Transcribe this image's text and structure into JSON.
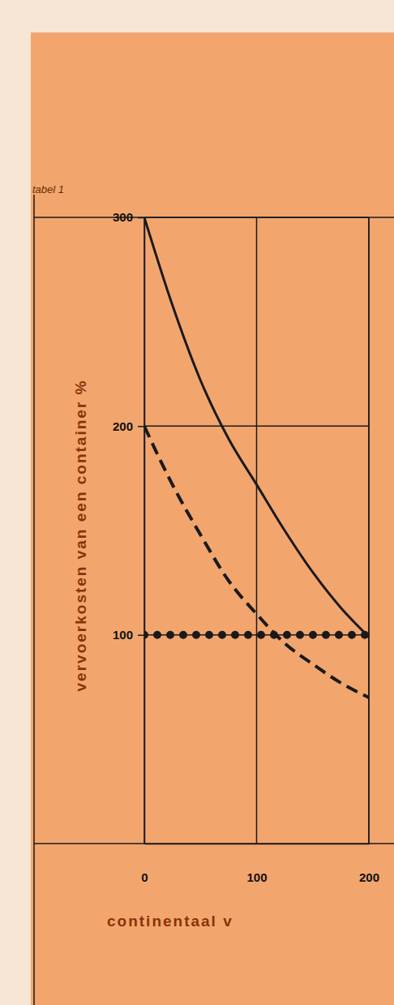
{
  "chart_data": {
    "type": "line",
    "title": "tabel 1",
    "y_label": "vervoerkosten van een container %",
    "x_label": "continentaal v",
    "x": [
      0,
      25,
      50,
      75,
      100,
      125,
      150,
      175,
      200
    ],
    "series": [
      {
        "color": "#1a1a1a",
        "line_style": "solid",
        "values": [
          300,
          258,
          222,
          194,
          172,
          150,
          130,
          113,
          99
        ]
      },
      {
        "color": "#1a1a1a",
        "line_style": "dashed",
        "values": [
          200,
          172,
          148,
          126,
          110,
          96,
          86,
          77,
          70
        ]
      },
      {
        "color": "#1a1a1a",
        "line_style": "dotted",
        "values": [
          100,
          100,
          100,
          100,
          100,
          100,
          100,
          100,
          100
        ]
      }
    ],
    "xlim": [
      0,
      200
    ],
    "xticks": [
      0,
      100,
      200
    ],
    "ylim": [
      0,
      300
    ],
    "yticks": [
      100,
      200,
      300
    ],
    "grid": true
  }
}
